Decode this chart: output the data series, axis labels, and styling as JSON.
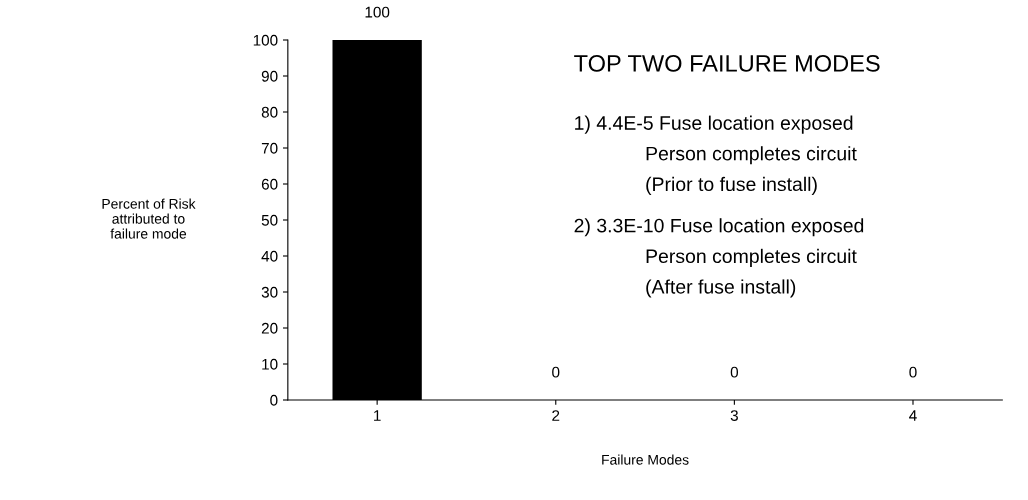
{
  "chart_data": {
    "type": "bar",
    "categories": [
      "1",
      "2",
      "3",
      "4"
    ],
    "values": [
      100,
      0,
      0,
      0
    ],
    "color": "#000000",
    "ylim": [
      0,
      100
    ],
    "yticks": [
      0,
      10,
      20,
      30,
      40,
      50,
      60,
      70,
      80,
      90,
      100
    ],
    "xlabel": "Failure Modes",
    "ylabel": "Percent of Risk\nattributed to\nfailure mode",
    "data_labels": true,
    "grid": false,
    "legend": false,
    "annotations": [
      "TOP TWO FAILURE MODES",
      "1) 4.4E-5 Fuse location exposed\nPerson completes circuit\n(Prior to fuse install)",
      "2) 3.3E-10 Fuse location exposed\nPerson completes circuit\n(After fuse install)"
    ]
  }
}
